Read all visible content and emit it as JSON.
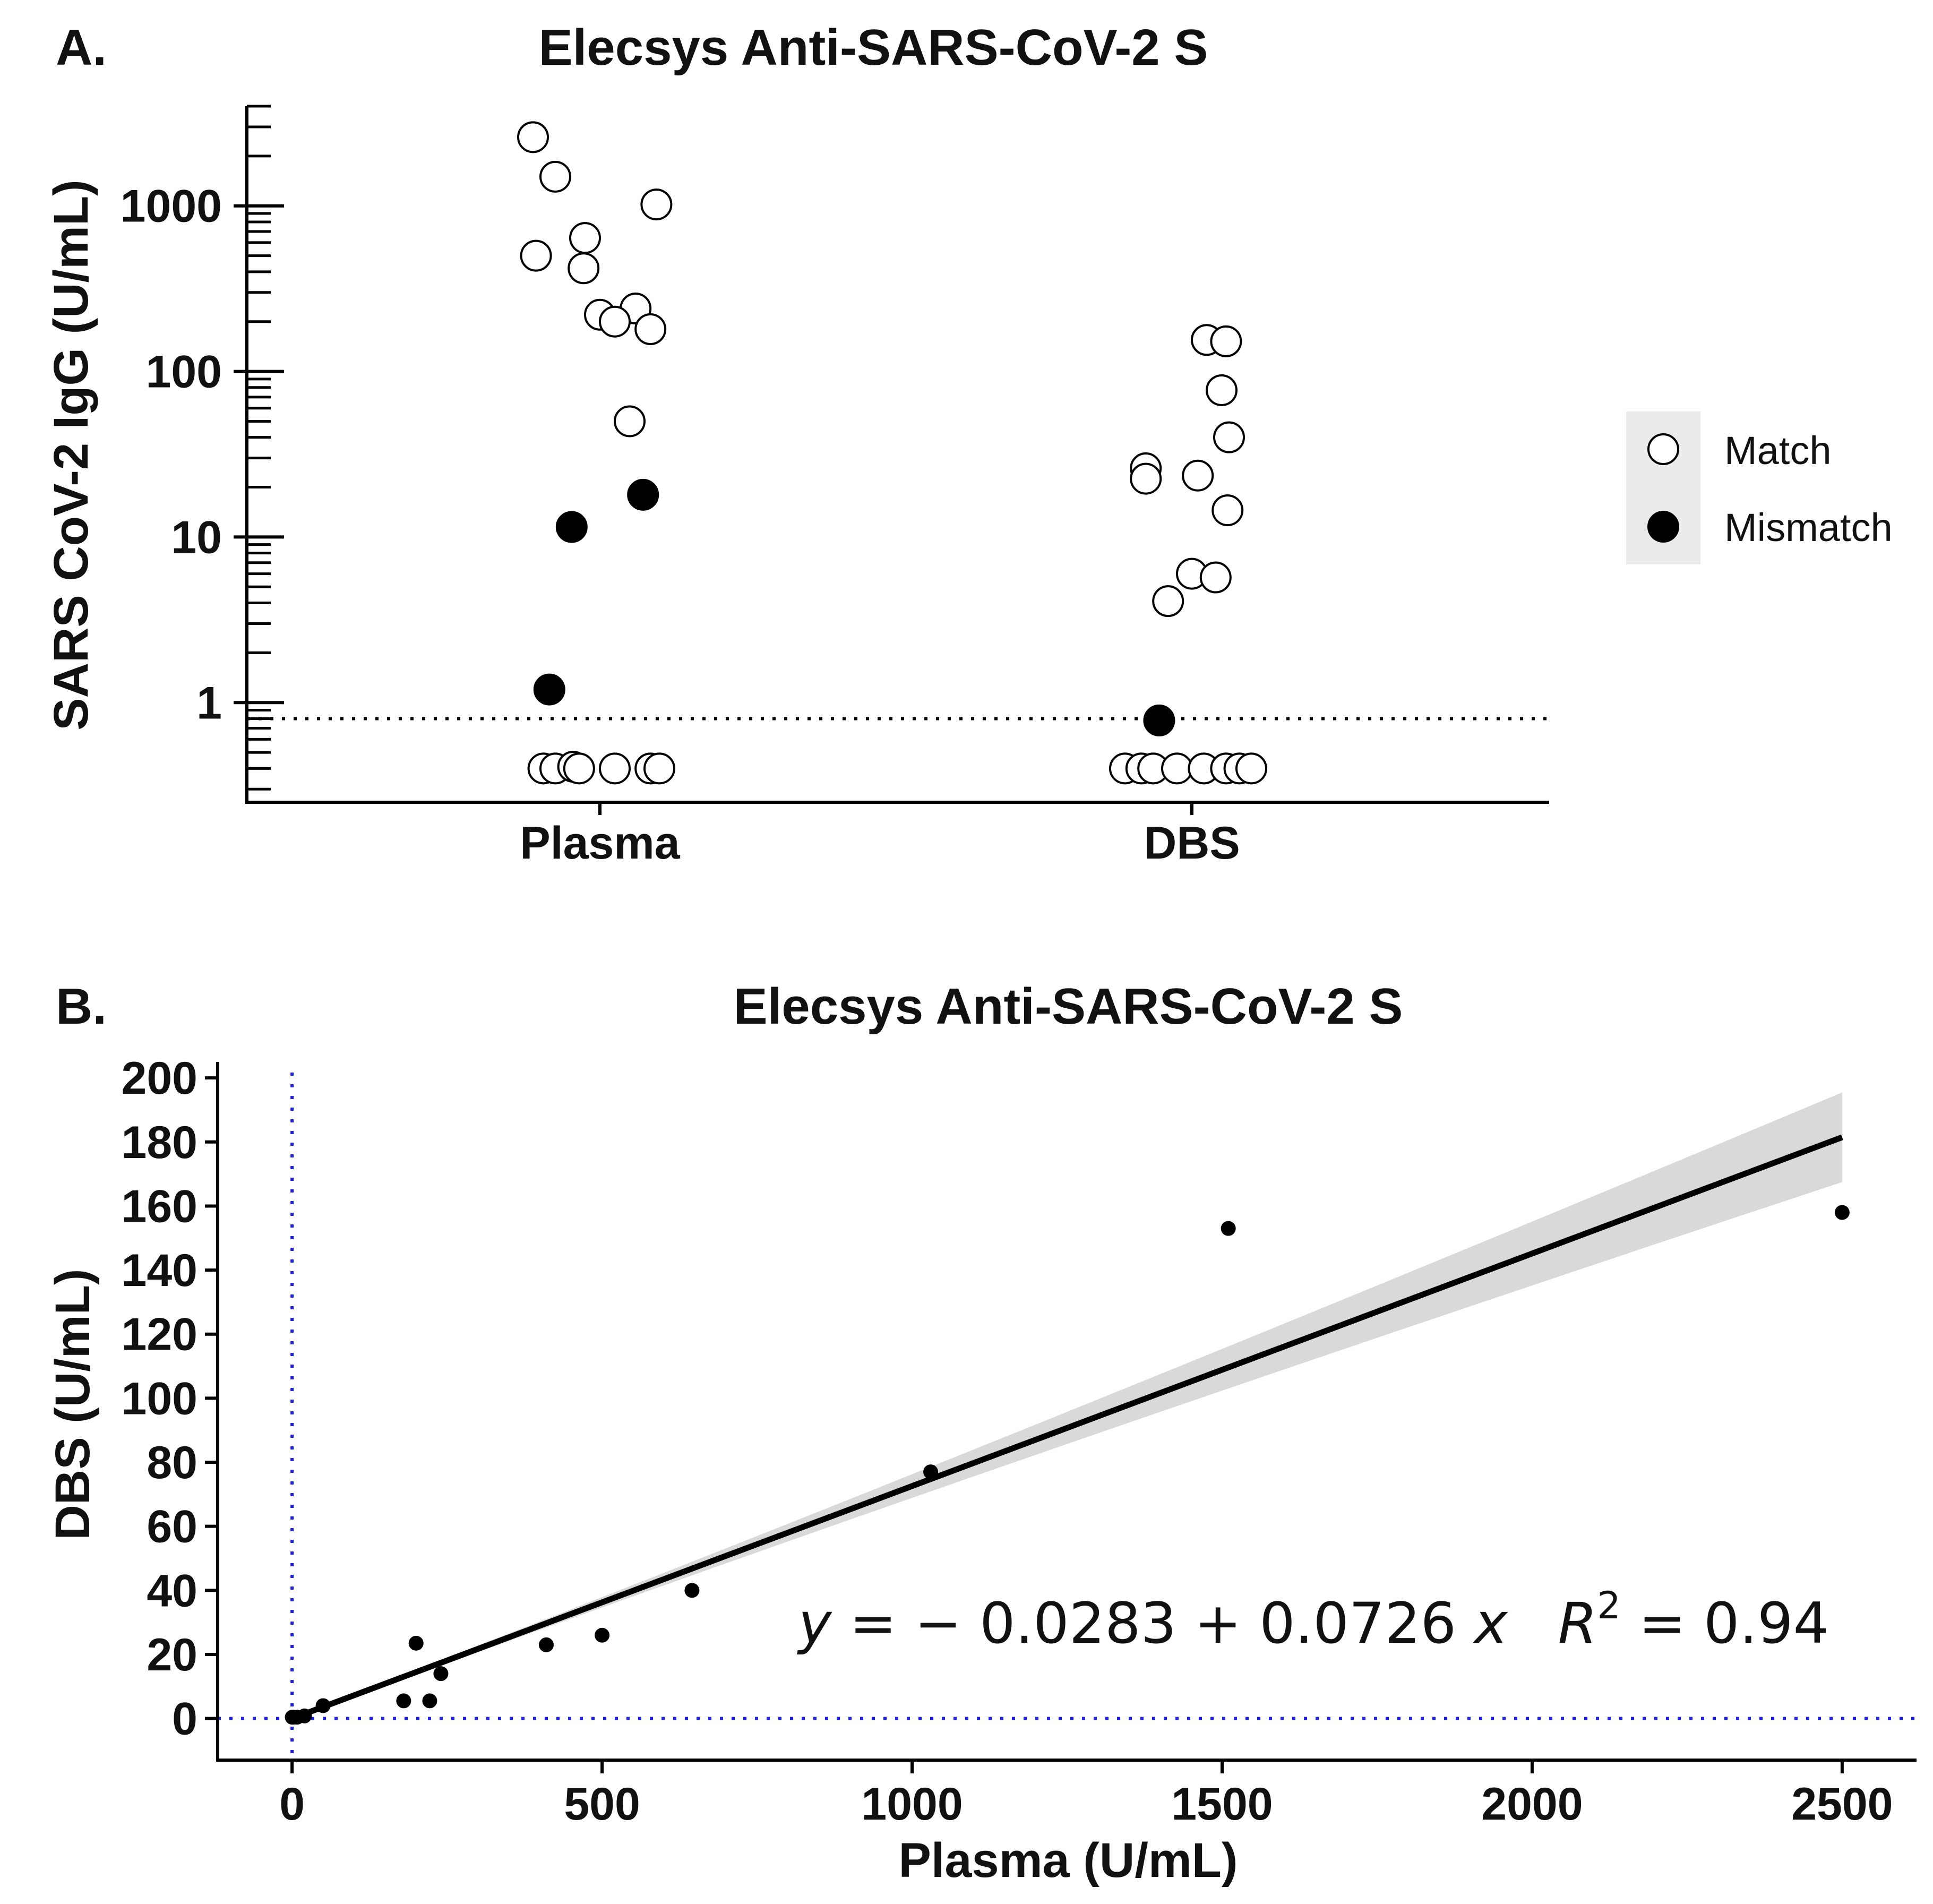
{
  "chart_data": [
    {
      "panel_label": "A.",
      "type": "scatter",
      "title": "Elecsys Anti-SARS-CoV-2 S",
      "xlabel": "",
      "ylabel": "SARS CoV-2 IgG (U/mL)",
      "y_scale": "log",
      "ylim": [
        0.25,
        4000
      ],
      "y_ticks": [
        1,
        10,
        100,
        1000
      ],
      "y_tick_labels": [
        "1",
        "10",
        "100",
        "1000"
      ],
      "categories": [
        "Plasma",
        "DBS"
      ],
      "cutoff": 0.8,
      "legend": {
        "placement": "right",
        "entries": [
          "Match",
          "Mismatch"
        ]
      },
      "colors": {
        "Match": "#ffffff",
        "Mismatch": "#000000",
        "legend_bg": "#ebebeb"
      },
      "points": [
        {
          "cat": "Plasma",
          "j": -0.45,
          "y": 2600,
          "status": "Match"
        },
        {
          "cat": "Plasma",
          "j": -0.3,
          "y": 1500,
          "status": "Match"
        },
        {
          "cat": "Plasma",
          "j": 0.38,
          "y": 1020,
          "status": "Match"
        },
        {
          "cat": "Plasma",
          "j": -0.1,
          "y": 640,
          "status": "Match"
        },
        {
          "cat": "Plasma",
          "j": -0.43,
          "y": 500,
          "status": "Match"
        },
        {
          "cat": "Plasma",
          "j": -0.11,
          "y": 420,
          "status": "Match"
        },
        {
          "cat": "Plasma",
          "j": 0.24,
          "y": 240,
          "status": "Match"
        },
        {
          "cat": "Plasma",
          "j": 0.0,
          "y": 220,
          "status": "Match"
        },
        {
          "cat": "Plasma",
          "j": 0.1,
          "y": 200,
          "status": "Match"
        },
        {
          "cat": "Plasma",
          "j": 0.34,
          "y": 180,
          "status": "Match"
        },
        {
          "cat": "Plasma",
          "j": 0.2,
          "y": 50,
          "status": "Match"
        },
        {
          "cat": "Plasma",
          "j": 0.29,
          "y": 18,
          "status": "Mismatch"
        },
        {
          "cat": "Plasma",
          "j": -0.19,
          "y": 11.5,
          "status": "Mismatch"
        },
        {
          "cat": "Plasma",
          "j": -0.34,
          "y": 1.2,
          "status": "Mismatch"
        },
        {
          "cat": "Plasma",
          "j": -0.38,
          "y": 0.4,
          "status": "Match"
        },
        {
          "cat": "Plasma",
          "j": -0.3,
          "y": 0.4,
          "status": "Match"
        },
        {
          "cat": "Plasma",
          "j": -0.18,
          "y": 0.41,
          "status": "Match"
        },
        {
          "cat": "Plasma",
          "j": -0.14,
          "y": 0.4,
          "status": "Match"
        },
        {
          "cat": "Plasma",
          "j": 0.1,
          "y": 0.4,
          "status": "Match"
        },
        {
          "cat": "Plasma",
          "j": 0.34,
          "y": 0.4,
          "status": "Match"
        },
        {
          "cat": "Plasma",
          "j": 0.4,
          "y": 0.4,
          "status": "Match"
        },
        {
          "cat": "DBS",
          "j": 0.1,
          "y": 155,
          "status": "Match"
        },
        {
          "cat": "DBS",
          "j": 0.23,
          "y": 152,
          "status": "Match"
        },
        {
          "cat": "DBS",
          "j": 0.2,
          "y": 77,
          "status": "Match"
        },
        {
          "cat": "DBS",
          "j": 0.25,
          "y": 40,
          "status": "Match"
        },
        {
          "cat": "DBS",
          "j": -0.31,
          "y": 26,
          "status": "Match"
        },
        {
          "cat": "DBS",
          "j": 0.04,
          "y": 23.5,
          "status": "Match"
        },
        {
          "cat": "DBS",
          "j": -0.31,
          "y": 22.5,
          "status": "Match"
        },
        {
          "cat": "DBS",
          "j": 0.24,
          "y": 14.5,
          "status": "Match"
        },
        {
          "cat": "DBS",
          "j": 0.0,
          "y": 6,
          "status": "Match"
        },
        {
          "cat": "DBS",
          "j": 0.16,
          "y": 5.7,
          "status": "Match"
        },
        {
          "cat": "DBS",
          "j": -0.16,
          "y": 4.1,
          "status": "Match"
        },
        {
          "cat": "DBS",
          "j": -0.22,
          "y": 0.78,
          "status": "Mismatch"
        },
        {
          "cat": "DBS",
          "j": -0.45,
          "y": 0.4,
          "status": "Match"
        },
        {
          "cat": "DBS",
          "j": -0.34,
          "y": 0.4,
          "status": "Match"
        },
        {
          "cat": "DBS",
          "j": -0.26,
          "y": 0.4,
          "status": "Match"
        },
        {
          "cat": "DBS",
          "j": -0.1,
          "y": 0.4,
          "status": "Match"
        },
        {
          "cat": "DBS",
          "j": 0.08,
          "y": 0.4,
          "status": "Match"
        },
        {
          "cat": "DBS",
          "j": 0.23,
          "y": 0.4,
          "status": "Match"
        },
        {
          "cat": "DBS",
          "j": 0.32,
          "y": 0.4,
          "status": "Match"
        },
        {
          "cat": "DBS",
          "j": 0.4,
          "y": 0.4,
          "status": "Match"
        }
      ]
    },
    {
      "panel_label": "B.",
      "type": "scatter",
      "title": "Elecsys Anti-SARS-CoV-2 S",
      "xlabel": "Plasma (U/mL)",
      "ylabel": "DBS (U/mL)",
      "xlim": [
        -120,
        2620
      ],
      "ylim": [
        -13,
        205
      ],
      "x_ticks": [
        0,
        500,
        1000,
        1500,
        2000,
        2500
      ],
      "x_tick_labels": [
        "0",
        "500",
        "1000",
        "1500",
        "2000",
        "2500"
      ],
      "y_ticks": [
        0,
        20,
        40,
        60,
        80,
        100,
        120,
        140,
        160,
        180,
        200
      ],
      "y_tick_labels": [
        "0",
        "20",
        "40",
        "60",
        "80",
        "100",
        "120",
        "140",
        "160",
        "180",
        "200"
      ],
      "reference_lines": {
        "x": 0,
        "y": 0,
        "color": "#1f1fe0"
      },
      "regression": {
        "intercept": -0.0283,
        "slope": 0.0726,
        "r2": 0.94,
        "x_range": [
          0,
          2500
        ],
        "ci_halfwidth": [
          0.6,
          14
        ],
        "line_color": "#000000",
        "band_color": "#d9d9d9"
      },
      "equation": {
        "y": "y",
        "eq_part": " = − 0.0283 + 0.0726 ",
        "x": "x",
        "r": "R",
        "sup": "2",
        "r2_part": " = 0.94"
      },
      "points": [
        {
          "x": 2500,
          "y": 158
        },
        {
          "x": 1510,
          "y": 153
        },
        {
          "x": 1030,
          "y": 77
        },
        {
          "x": 645,
          "y": 40
        },
        {
          "x": 500,
          "y": 26
        },
        {
          "x": 410,
          "y": 23
        },
        {
          "x": 200,
          "y": 23.5
        },
        {
          "x": 240,
          "y": 14
        },
        {
          "x": 180,
          "y": 5.5
        },
        {
          "x": 222,
          "y": 5.5
        },
        {
          "x": 50,
          "y": 4
        },
        {
          "x": 20,
          "y": 0.8
        },
        {
          "x": 8,
          "y": 0.4
        },
        {
          "x": 2,
          "y": 0.4
        },
        {
          "x": 0.5,
          "y": 0.4
        },
        {
          "x": 0.4,
          "y": 0.4
        }
      ]
    }
  ]
}
